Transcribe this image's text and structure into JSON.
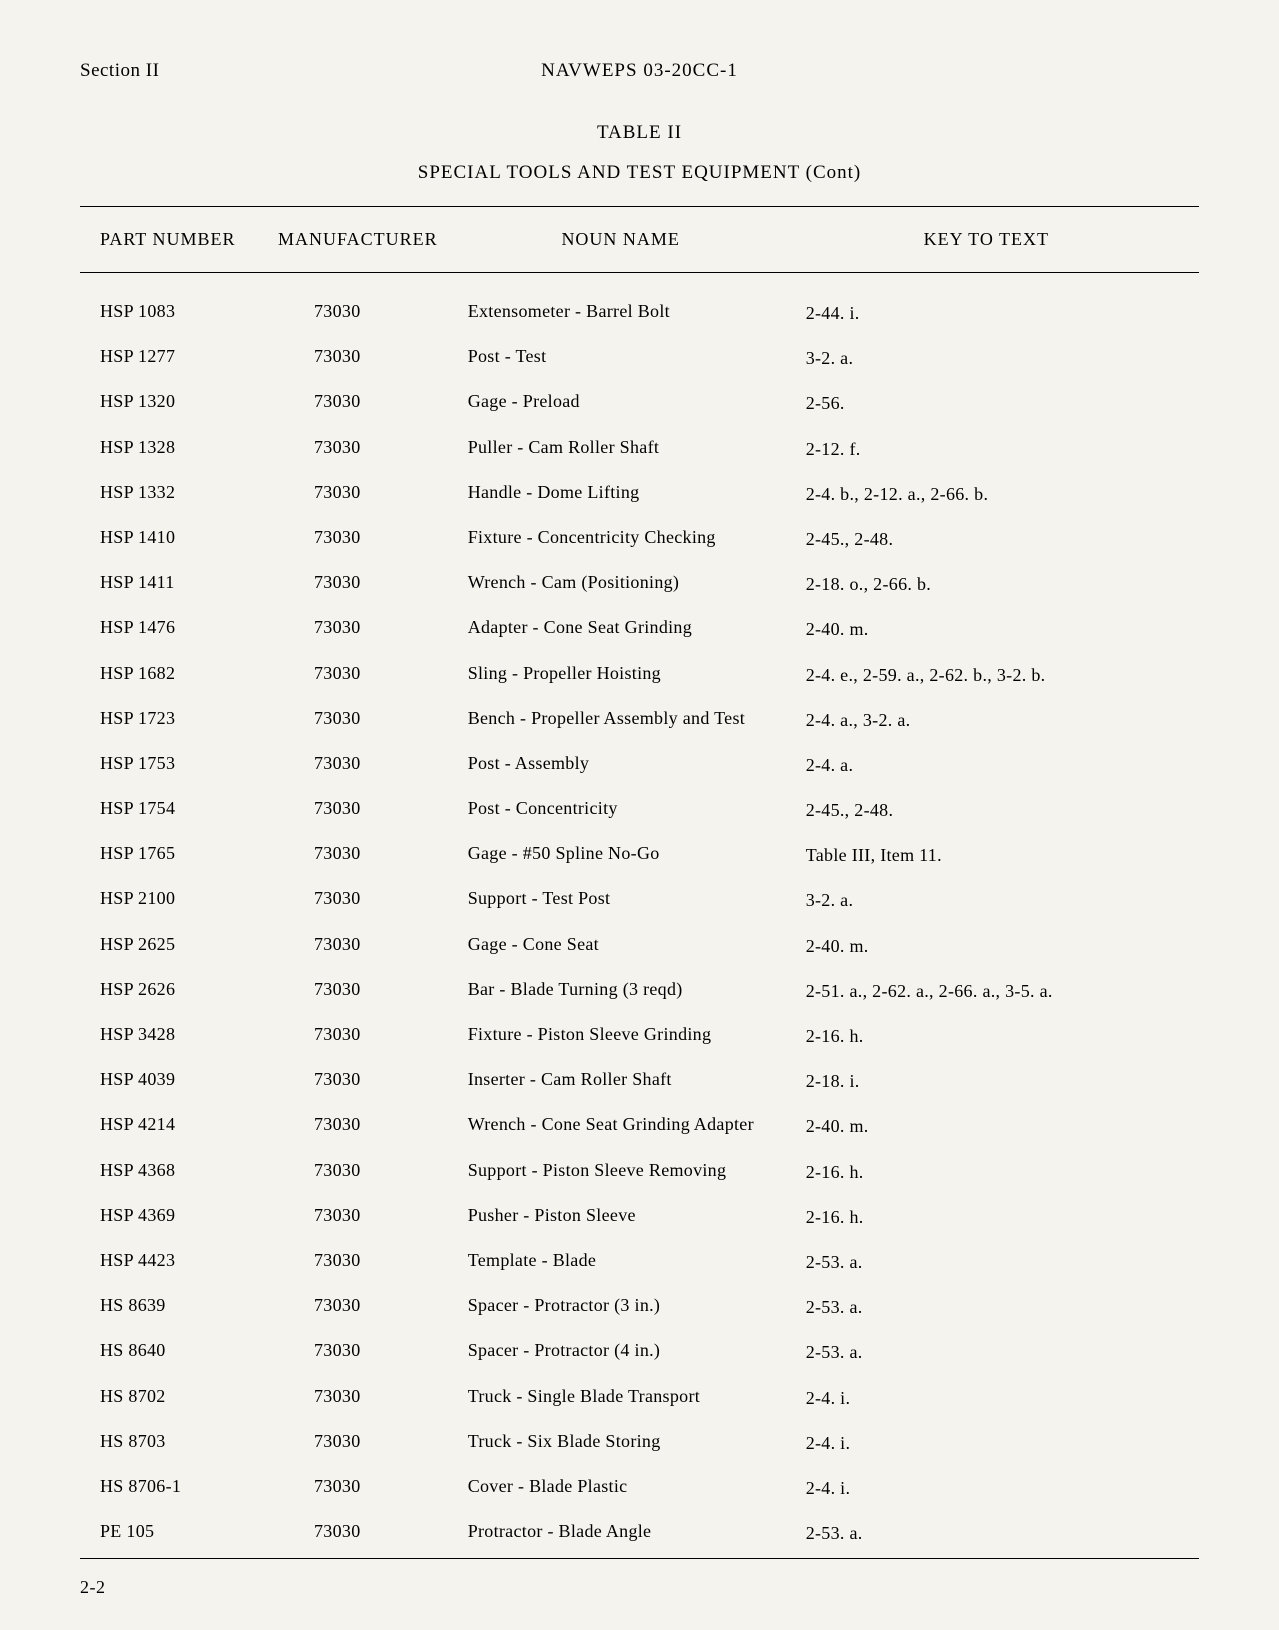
{
  "header": {
    "section": "Section II",
    "docNumber": "NAVWEPS 03-20CC-1"
  },
  "table": {
    "label": "TABLE II",
    "title": "SPECIAL TOOLS AND TEST EQUIPMENT (Cont)",
    "columns": {
      "partNumber": "PART NUMBER",
      "manufacturer": "MANUFACTURER",
      "nounName": "NOUN NAME",
      "keyToText": "KEY TO TEXT"
    },
    "rows": [
      {
        "partNumber": "HSP 1083",
        "manufacturer": "73030",
        "nounName": "Extensometer - Barrel Bolt",
        "keyToText": "2-44. i."
      },
      {
        "partNumber": "HSP 1277",
        "manufacturer": "73030",
        "nounName": "Post - Test",
        "keyToText": "3-2. a."
      },
      {
        "partNumber": "HSP 1320",
        "manufacturer": "73030",
        "nounName": "Gage - Preload",
        "keyToText": "2-56."
      },
      {
        "partNumber": "HSP 1328",
        "manufacturer": "73030",
        "nounName": "Puller - Cam Roller Shaft",
        "keyToText": "2-12. f."
      },
      {
        "partNumber": "HSP 1332",
        "manufacturer": "73030",
        "nounName": "Handle - Dome Lifting",
        "keyToText": "2-4. b., 2-12. a., 2-66. b."
      },
      {
        "partNumber": "HSP 1410",
        "manufacturer": "73030",
        "nounName": "Fixture - Concentricity Checking",
        "keyToText": "2-45., 2-48."
      },
      {
        "partNumber": "HSP 1411",
        "manufacturer": "73030",
        "nounName": "Wrench - Cam (Positioning)",
        "keyToText": "2-18. o., 2-66. b."
      },
      {
        "partNumber": "HSP 1476",
        "manufacturer": "73030",
        "nounName": "Adapter - Cone Seat Grinding",
        "keyToText": "2-40. m."
      },
      {
        "partNumber": "HSP 1682",
        "manufacturer": "73030",
        "nounName": "Sling - Propeller Hoisting",
        "keyToText": "2-4. e., 2-59. a., 2-62. b., 3-2. b."
      },
      {
        "partNumber": "HSP 1723",
        "manufacturer": "73030",
        "nounName": "Bench - Propeller Assembly and Test",
        "keyToText": "2-4. a., 3-2. a."
      },
      {
        "partNumber": "HSP 1753",
        "manufacturer": "73030",
        "nounName": "Post - Assembly",
        "keyToText": "2-4. a."
      },
      {
        "partNumber": "HSP 1754",
        "manufacturer": "73030",
        "nounName": "Post - Concentricity",
        "keyToText": "2-45., 2-48."
      },
      {
        "partNumber": "HSP 1765",
        "manufacturer": "73030",
        "nounName": "Gage - #50 Spline No-Go",
        "keyToText": "Table III, Item 11."
      },
      {
        "partNumber": "HSP 2100",
        "manufacturer": "73030",
        "nounName": "Support - Test Post",
        "keyToText": "3-2. a."
      },
      {
        "partNumber": "HSP 2625",
        "manufacturer": "73030",
        "nounName": "Gage - Cone Seat",
        "keyToText": "2-40. m."
      },
      {
        "partNumber": "HSP 2626",
        "manufacturer": "73030",
        "nounName": "Bar - Blade Turning (3 reqd)",
        "keyToText": "2-51. a., 2-62. a., 2-66. a., 3-5. a."
      },
      {
        "partNumber": "HSP 3428",
        "manufacturer": "73030",
        "nounName": "Fixture - Piston Sleeve Grinding",
        "keyToText": "2-16. h."
      },
      {
        "partNumber": "HSP 4039",
        "manufacturer": "73030",
        "nounName": "Inserter - Cam Roller Shaft",
        "keyToText": "2-18. i."
      },
      {
        "partNumber": "HSP 4214",
        "manufacturer": "73030",
        "nounName": "Wrench - Cone Seat Grinding Adapter",
        "keyToText": "2-40. m."
      },
      {
        "partNumber": "HSP 4368",
        "manufacturer": "73030",
        "nounName": "Support - Piston Sleeve Removing",
        "keyToText": "2-16. h."
      },
      {
        "partNumber": "HSP 4369",
        "manufacturer": "73030",
        "nounName": "Pusher - Piston Sleeve",
        "keyToText": "2-16. h."
      },
      {
        "partNumber": "HSP 4423",
        "manufacturer": "73030",
        "nounName": "Template - Blade",
        "keyToText": "2-53. a."
      },
      {
        "partNumber": "HS 8639",
        "manufacturer": "73030",
        "nounName": "Spacer - Protractor (3 in.)",
        "keyToText": "2-53. a."
      },
      {
        "partNumber": "HS 8640",
        "manufacturer": "73030",
        "nounName": "Spacer - Protractor (4 in.)",
        "keyToText": "2-53. a."
      },
      {
        "partNumber": "HS 8702",
        "manufacturer": "73030",
        "nounName": "Truck - Single Blade Transport",
        "keyToText": "2-4. i."
      },
      {
        "partNumber": "HS 8703",
        "manufacturer": "73030",
        "nounName": "Truck - Six Blade Storing",
        "keyToText": "2-4. i."
      },
      {
        "partNumber": "HS 8706-1",
        "manufacturer": "73030",
        "nounName": "Cover - Blade Plastic",
        "keyToText": "2-4. i."
      },
      {
        "partNumber": "PE 105",
        "manufacturer": "73030",
        "nounName": "Protractor - Blade Angle",
        "keyToText": "2-53. a."
      }
    ]
  },
  "pageNumber": "2-2"
}
